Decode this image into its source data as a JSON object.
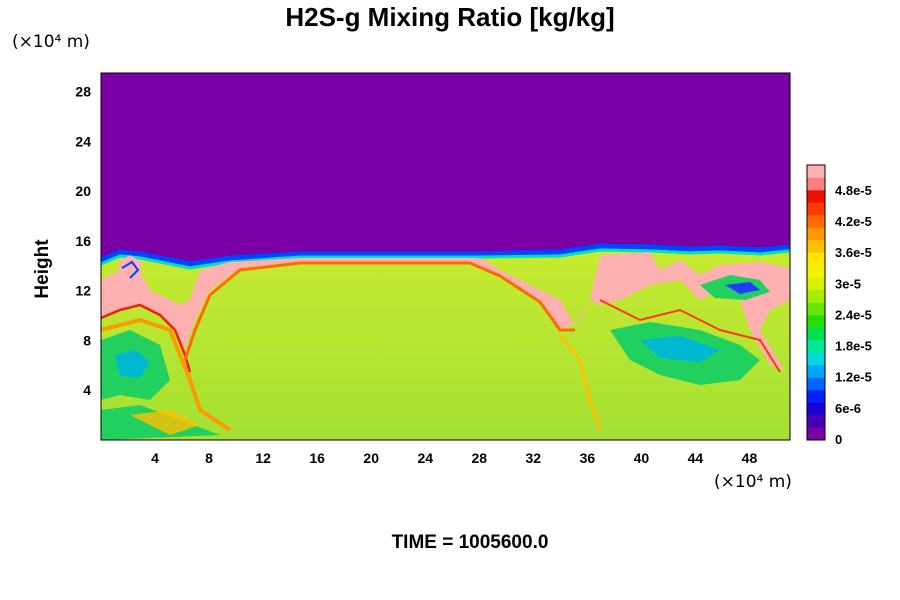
{
  "chart_data": {
    "type": "heatmap",
    "title": "H2S-g Mixing Ratio [kg/kg]",
    "ylabel": "Height",
    "x_unit": "(×10⁴ m)",
    "y_unit": "(×10⁴ m)",
    "x_ticks": [
      4,
      8,
      12,
      16,
      20,
      24,
      28,
      32,
      36,
      40,
      44,
      48
    ],
    "y_ticks": [
      4,
      8,
      12,
      16,
      20,
      24,
      28
    ],
    "xlim": [
      0,
      51
    ],
    "ylim": [
      0,
      29.5
    ],
    "colorbar": {
      "labels": [
        "0",
        "6e-6",
        "1.2e-5",
        "1.8e-5",
        "2.4e-5",
        "3e-5",
        "3.6e-5",
        "4.2e-5",
        "4.8e-5"
      ],
      "range": [
        0,
        5.3e-05
      ],
      "colors": [
        "#7a00a6",
        "#4b00b8",
        "#1a00d6",
        "#0022ff",
        "#0066ff",
        "#00a6ff",
        "#00dada",
        "#00e89a",
        "#00e050",
        "#22e000",
        "#66e600",
        "#a6ee00",
        "#d6f000",
        "#f2f200",
        "#ffe600",
        "#ffc000",
        "#ff9900",
        "#ff6a00",
        "#ff3a00",
        "#ee1100",
        "#ff8080",
        "#ffb0b0"
      ]
    },
    "time_label": "TIME = 1005600.0"
  }
}
